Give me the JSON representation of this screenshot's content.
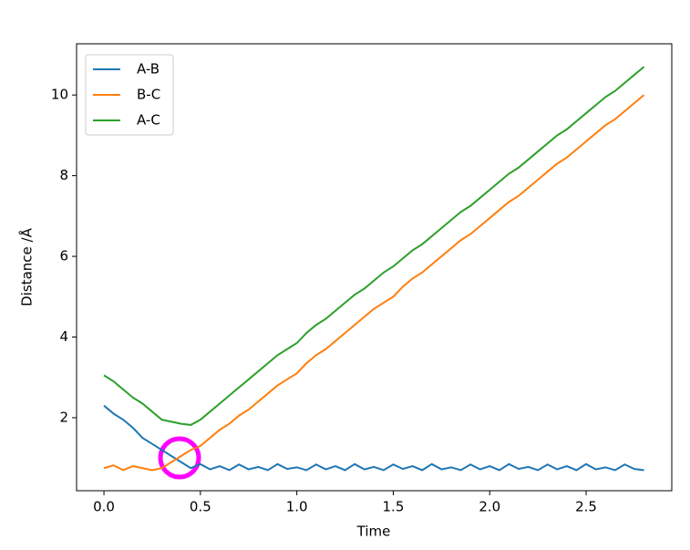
{
  "chart_data": {
    "type": "line",
    "xlabel": "Time",
    "ylabel": "Distance /Å",
    "x": [
      0,
      0.05,
      0.1,
      0.15,
      0.2,
      0.25,
      0.3,
      0.35,
      0.4,
      0.45,
      0.5,
      0.55,
      0.6,
      0.65,
      0.7,
      0.75,
      0.8,
      0.85,
      0.9,
      0.95,
      1.0,
      1.05,
      1.1,
      1.15,
      1.2,
      1.25,
      1.3,
      1.35,
      1.4,
      1.45,
      1.5,
      1.55,
      1.6,
      1.65,
      1.7,
      1.75,
      1.8,
      1.85,
      1.9,
      1.95,
      2.0,
      2.05,
      2.1,
      2.15,
      2.2,
      2.25,
      2.3,
      2.35,
      2.4,
      2.45,
      2.5,
      2.55,
      2.6,
      2.65,
      2.7,
      2.75,
      2.8
    ],
    "series": [
      {
        "name": "A-B",
        "color": "#1f77b4",
        "values": [
          2.3,
          2.1,
          1.95,
          1.75,
          1.5,
          1.35,
          1.2,
          1.05,
          0.9,
          0.75,
          0.85,
          0.72,
          0.8,
          0.7,
          0.84,
          0.72,
          0.78,
          0.7,
          0.85,
          0.73,
          0.77,
          0.7,
          0.84,
          0.72,
          0.8,
          0.7,
          0.85,
          0.72,
          0.78,
          0.7,
          0.84,
          0.73,
          0.8,
          0.7,
          0.85,
          0.72,
          0.77,
          0.7,
          0.84,
          0.72,
          0.8,
          0.7,
          0.85,
          0.73,
          0.78,
          0.7,
          0.84,
          0.72,
          0.8,
          0.7,
          0.85,
          0.72,
          0.77,
          0.7,
          0.84,
          0.73,
          0.7
        ]
      },
      {
        "name": "B-C",
        "color": "#ff7f0e",
        "values": [
          0.75,
          0.82,
          0.7,
          0.8,
          0.75,
          0.7,
          0.75,
          0.9,
          1.05,
          1.2,
          1.3,
          1.5,
          1.7,
          1.85,
          2.05,
          2.2,
          2.4,
          2.6,
          2.8,
          2.95,
          3.1,
          3.35,
          3.55,
          3.7,
          3.9,
          4.1,
          4.3,
          4.5,
          4.7,
          4.85,
          5.0,
          5.25,
          5.45,
          5.6,
          5.8,
          6.0,
          6.2,
          6.4,
          6.55,
          6.75,
          6.95,
          7.15,
          7.35,
          7.5,
          7.7,
          7.9,
          8.1,
          8.3,
          8.45,
          8.65,
          8.85,
          9.05,
          9.25,
          9.4,
          9.6,
          9.8,
          10.0
        ]
      },
      {
        "name": "A-C",
        "color": "#2ca02c",
        "values": [
          3.05,
          2.9,
          2.7,
          2.5,
          2.35,
          2.15,
          1.95,
          1.9,
          1.85,
          1.82,
          1.95,
          2.15,
          2.35,
          2.55,
          2.75,
          2.95,
          3.15,
          3.35,
          3.55,
          3.7,
          3.85,
          4.1,
          4.3,
          4.45,
          4.65,
          4.85,
          5.05,
          5.2,
          5.4,
          5.6,
          5.75,
          5.95,
          6.15,
          6.3,
          6.5,
          6.7,
          6.9,
          7.1,
          7.25,
          7.45,
          7.65,
          7.85,
          8.05,
          8.2,
          8.4,
          8.6,
          8.8,
          9.0,
          9.15,
          9.35,
          9.55,
          9.75,
          9.95,
          10.1,
          10.3,
          10.5,
          10.7
        ]
      }
    ],
    "xlim": [
      -0.142,
      2.944
    ],
    "ylim": [
      0.19,
      11.27
    ],
    "xticks": [
      {
        "value": 0,
        "label": "0.0"
      },
      0.5,
      {
        "value": 1,
        "label": "1.0"
      },
      1.5,
      {
        "value": 2,
        "label": "2.0"
      },
      2.5
    ],
    "yticks": [
      2,
      4,
      6,
      8,
      10
    ],
    "legend": "upper left"
  }
}
